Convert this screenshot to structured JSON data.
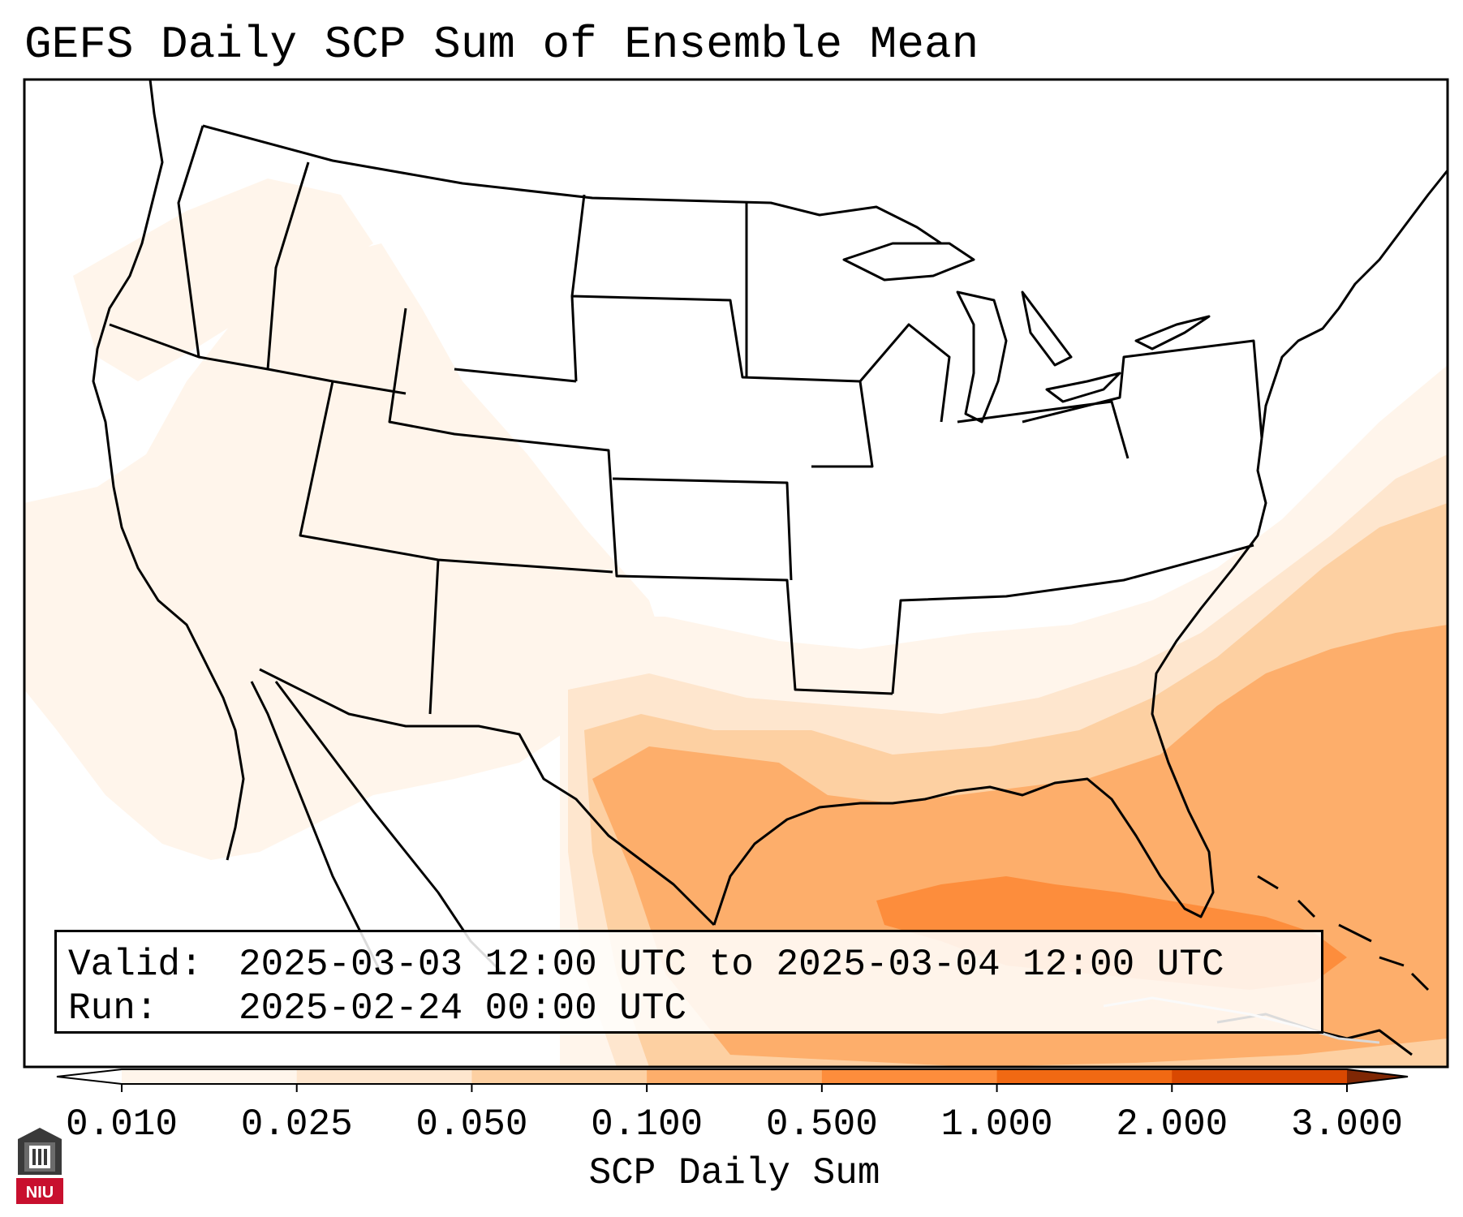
{
  "title": "GEFS Daily SCP Sum of Ensemble Mean",
  "info": {
    "valid_key": "Valid:",
    "valid_value": "2025-03-03 12:00 UTC to 2025-03-04 12:00 UTC",
    "run_key": "Run:",
    "run_value": "2025-02-24 00:00 UTC"
  },
  "colorbar": {
    "label": "SCP Daily Sum",
    "ticks": [
      "0.010",
      "0.025",
      "0.050",
      "0.100",
      "0.500",
      "1.000",
      "2.000",
      "3.000"
    ],
    "colors": [
      "#fff5eb",
      "#fee6ce",
      "#fdd0a2",
      "#fdae6b",
      "#fd8d3c",
      "#f16913",
      "#d94801",
      "#a63603"
    ],
    "under_color": "#ffffff",
    "over_color": "#7f2704"
  },
  "logo": {
    "text": "NIU"
  }
}
